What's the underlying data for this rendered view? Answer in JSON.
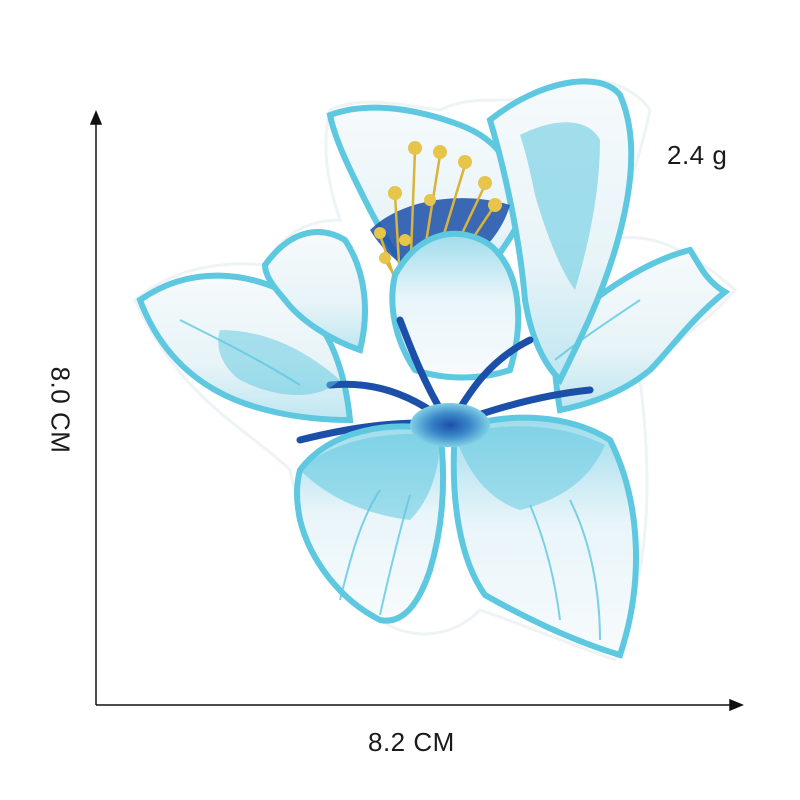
{
  "product": {
    "weight_label": "2.4 g",
    "width_label": "8.2 CM",
    "height_label": "8.0 CM"
  },
  "colors": {
    "background": "#ffffff",
    "axis": "#111111",
    "petal_white": "#f4f8fb",
    "outline_light_blue": "#5ec8e0",
    "mid_blue": "#8ed6ea",
    "dark_blue": "#1b4fa8",
    "stamen_gold": "#d9b33a",
    "backing": "#ffffff"
  }
}
